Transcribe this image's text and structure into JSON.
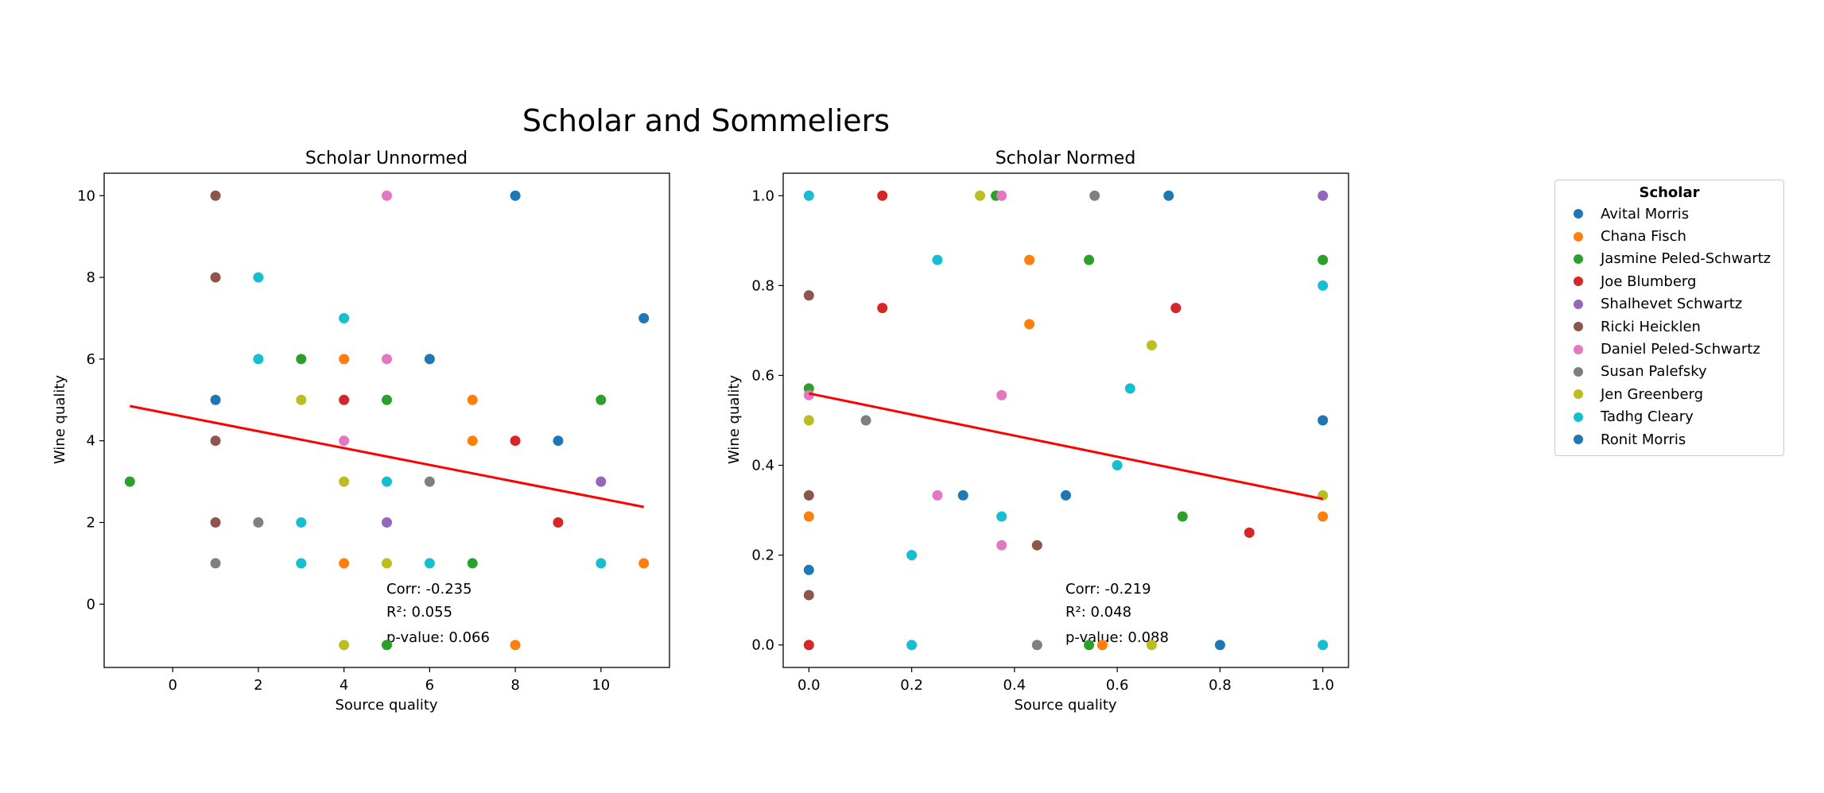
{
  "figure": {
    "title": "Scholar and Sommeliers"
  },
  "legend": {
    "title": "Scholar",
    "entries": [
      {
        "name": "Avital Morris",
        "color": "#1f77b4"
      },
      {
        "name": "Chana Fisch",
        "color": "#ff7f0e"
      },
      {
        "name": "Jasmine Peled-Schwartz",
        "color": "#2ca02c"
      },
      {
        "name": "Joe Blumberg",
        "color": "#d62728"
      },
      {
        "name": "Shalhevet Schwartz",
        "color": "#9467bd"
      },
      {
        "name": "Ricki Heicklen",
        "color": "#8c564b"
      },
      {
        "name": "Daniel Peled-Schwartz",
        "color": "#e377c2"
      },
      {
        "name": "Susan Palefsky",
        "color": "#7f7f7f"
      },
      {
        "name": "Jen Greenberg",
        "color": "#bcbd22"
      },
      {
        "name": "Tadhg Cleary",
        "color": "#17becf"
      },
      {
        "name": "Ronit Morris",
        "color": "#1f77b4"
      }
    ]
  },
  "chart_data": [
    {
      "type": "scatter",
      "title": "Scholar Unnormed",
      "xlabel": "Source quality",
      "ylabel": "Wine quality",
      "xlim": [
        -1.6,
        11.6
      ],
      "ylim": [
        -1.55,
        10.55
      ],
      "xticks": [
        0,
        2,
        4,
        6,
        8,
        10
      ],
      "yticks": [
        0,
        2,
        4,
        6,
        8,
        10
      ],
      "grid": false,
      "regression": {
        "x": [
          -1,
          11
        ],
        "y": [
          4.85,
          2.38
        ],
        "color": "#ff0000"
      },
      "stats": [
        "Corr: -0.235",
        "R²: 0.055",
        "p-value: 0.066"
      ],
      "points": [
        {
          "x": 1,
          "y": 10,
          "color": "#8c564b"
        },
        {
          "x": 5,
          "y": 10,
          "color": "#e377c2"
        },
        {
          "x": 8,
          "y": 10,
          "color": "#1f77b4"
        },
        {
          "x": 1,
          "y": 8,
          "color": "#8c564b"
        },
        {
          "x": 2,
          "y": 8,
          "color": "#17becf"
        },
        {
          "x": 4,
          "y": 7,
          "color": "#17becf"
        },
        {
          "x": 11,
          "y": 7,
          "color": "#1f77b4"
        },
        {
          "x": 2,
          "y": 6,
          "color": "#17becf"
        },
        {
          "x": 3,
          "y": 6,
          "color": "#2ca02c"
        },
        {
          "x": 4,
          "y": 6,
          "color": "#ff7f0e"
        },
        {
          "x": 5,
          "y": 6,
          "color": "#e377c2"
        },
        {
          "x": 6,
          "y": 6,
          "color": "#1f77b4"
        },
        {
          "x": 1,
          "y": 5,
          "color": "#1f77b4"
        },
        {
          "x": 3,
          "y": 5,
          "color": "#bcbd22"
        },
        {
          "x": 4,
          "y": 5,
          "color": "#d62728"
        },
        {
          "x": 5,
          "y": 5,
          "color": "#2ca02c"
        },
        {
          "x": 7,
          "y": 5,
          "color": "#ff7f0e"
        },
        {
          "x": 10,
          "y": 5,
          "color": "#2ca02c"
        },
        {
          "x": 1,
          "y": 4,
          "color": "#8c564b"
        },
        {
          "x": 4,
          "y": 4,
          "color": "#e377c2"
        },
        {
          "x": 7,
          "y": 4,
          "color": "#ff7f0e"
        },
        {
          "x": 8,
          "y": 4,
          "color": "#d62728"
        },
        {
          "x": 9,
          "y": 4,
          "color": "#1f77b4"
        },
        {
          "x": -1,
          "y": 3,
          "color": "#2ca02c"
        },
        {
          "x": 4,
          "y": 3,
          "color": "#bcbd22"
        },
        {
          "x": 5,
          "y": 3,
          "color": "#17becf"
        },
        {
          "x": 6,
          "y": 3,
          "color": "#7f7f7f"
        },
        {
          "x": 10,
          "y": 3,
          "color": "#9467bd"
        },
        {
          "x": 1,
          "y": 2,
          "color": "#8c564b"
        },
        {
          "x": 2,
          "y": 2,
          "color": "#7f7f7f"
        },
        {
          "x": 3,
          "y": 2,
          "color": "#17becf"
        },
        {
          "x": 5,
          "y": 2,
          "color": "#9467bd"
        },
        {
          "x": 9,
          "y": 2,
          "color": "#d62728"
        },
        {
          "x": 1,
          "y": 1,
          "color": "#7f7f7f"
        },
        {
          "x": 3,
          "y": 1,
          "color": "#17becf"
        },
        {
          "x": 4,
          "y": 1,
          "color": "#ff7f0e"
        },
        {
          "x": 5,
          "y": 1,
          "color": "#bcbd22"
        },
        {
          "x": 6,
          "y": 1,
          "color": "#17becf"
        },
        {
          "x": 7,
          "y": 1,
          "color": "#2ca02c"
        },
        {
          "x": 10,
          "y": 1,
          "color": "#17becf"
        },
        {
          "x": 11,
          "y": 1,
          "color": "#ff7f0e"
        },
        {
          "x": 4,
          "y": -1,
          "color": "#bcbd22"
        },
        {
          "x": 5,
          "y": -1,
          "color": "#2ca02c"
        },
        {
          "x": 8,
          "y": -1,
          "color": "#ff7f0e"
        }
      ]
    },
    {
      "type": "scatter",
      "title": "Scholar Normed",
      "xlabel": "Source quality",
      "ylabel": "Wine quality",
      "xlim": [
        -0.05,
        1.05
      ],
      "ylim": [
        -0.05,
        1.05
      ],
      "xticks": [
        "0.0",
        "0.2",
        "0.4",
        "0.6",
        "0.8",
        "1.0"
      ],
      "yticks": [
        "0.0",
        "0.2",
        "0.4",
        "0.6",
        "0.8",
        "1.0"
      ],
      "grid": false,
      "regression": {
        "x": [
          0,
          1
        ],
        "y": [
          0.56,
          0.325
        ],
        "color": "#ff0000"
      },
      "stats": [
        "Corr: -0.219",
        "R²: 0.048",
        "p-value: 0.088"
      ],
      "points": [
        {
          "x": 0.0,
          "y": 1.0,
          "color": "#17becf"
        },
        {
          "x": 0.143,
          "y": 1.0,
          "color": "#d62728"
        },
        {
          "x": 0.333,
          "y": 1.0,
          "color": "#bcbd22"
        },
        {
          "x": 0.364,
          "y": 1.0,
          "color": "#2ca02c"
        },
        {
          "x": 0.375,
          "y": 1.0,
          "color": "#e377c2"
        },
        {
          "x": 0.556,
          "y": 1.0,
          "color": "#7f7f7f"
        },
        {
          "x": 0.7,
          "y": 1.0,
          "color": "#1f77b4"
        },
        {
          "x": 1.0,
          "y": 1.0,
          "color": "#9467bd"
        },
        {
          "x": 0.25,
          "y": 0.857,
          "color": "#17becf"
        },
        {
          "x": 0.429,
          "y": 0.857,
          "color": "#ff7f0e"
        },
        {
          "x": 0.545,
          "y": 0.857,
          "color": "#2ca02c"
        },
        {
          "x": 1.0,
          "y": 0.857,
          "color": "#2ca02c"
        },
        {
          "x": 1.0,
          "y": 0.8,
          "color": "#17becf"
        },
        {
          "x": 0.0,
          "y": 0.778,
          "color": "#8c564b"
        },
        {
          "x": 0.143,
          "y": 0.75,
          "color": "#d62728"
        },
        {
          "x": 0.714,
          "y": 0.75,
          "color": "#d62728"
        },
        {
          "x": 0.429,
          "y": 0.714,
          "color": "#ff7f0e"
        },
        {
          "x": 0.667,
          "y": 0.667,
          "color": "#bcbd22"
        },
        {
          "x": 0.0,
          "y": 0.571,
          "color": "#2ca02c"
        },
        {
          "x": 0.625,
          "y": 0.571,
          "color": "#17becf"
        },
        {
          "x": 0.0,
          "y": 0.556,
          "color": "#e377c2"
        },
        {
          "x": 0.375,
          "y": 0.556,
          "color": "#e377c2"
        },
        {
          "x": 0.0,
          "y": 0.5,
          "color": "#bcbd22"
        },
        {
          "x": 0.111,
          "y": 0.5,
          "color": "#7f7f7f"
        },
        {
          "x": 1.0,
          "y": 0.5,
          "color": "#1f77b4"
        },
        {
          "x": 0.6,
          "y": 0.4,
          "color": "#17becf"
        },
        {
          "x": 0.0,
          "y": 0.333,
          "color": "#8c564b"
        },
        {
          "x": 0.25,
          "y": 0.333,
          "color": "#e377c2"
        },
        {
          "x": 0.3,
          "y": 0.333,
          "color": "#1f77b4"
        },
        {
          "x": 0.5,
          "y": 0.333,
          "color": "#1f77b4"
        },
        {
          "x": 1.0,
          "y": 0.333,
          "color": "#bcbd22"
        },
        {
          "x": 0.0,
          "y": 0.286,
          "color": "#ff7f0e"
        },
        {
          "x": 0.375,
          "y": 0.286,
          "color": "#17becf"
        },
        {
          "x": 0.727,
          "y": 0.286,
          "color": "#2ca02c"
        },
        {
          "x": 1.0,
          "y": 0.286,
          "color": "#ff7f0e"
        },
        {
          "x": 0.857,
          "y": 0.25,
          "color": "#d62728"
        },
        {
          "x": 0.375,
          "y": 0.222,
          "color": "#e377c2"
        },
        {
          "x": 0.444,
          "y": 0.222,
          "color": "#8c564b"
        },
        {
          "x": 0.2,
          "y": 0.2,
          "color": "#17becf"
        },
        {
          "x": 0.0,
          "y": 0.167,
          "color": "#1f77b4"
        },
        {
          "x": 0.0,
          "y": 0.111,
          "color": "#8c564b"
        },
        {
          "x": 0.0,
          "y": 0.0,
          "color": "#d62728"
        },
        {
          "x": 0.2,
          "y": 0.0,
          "color": "#17becf"
        },
        {
          "x": 0.444,
          "y": 0.0,
          "color": "#7f7f7f"
        },
        {
          "x": 0.545,
          "y": 0.0,
          "color": "#2ca02c"
        },
        {
          "x": 0.571,
          "y": 0.0,
          "color": "#ff7f0e"
        },
        {
          "x": 0.667,
          "y": 0.0,
          "color": "#bcbd22"
        },
        {
          "x": 0.8,
          "y": 0.0,
          "color": "#1f77b4"
        },
        {
          "x": 1.0,
          "y": 0.0,
          "color": "#17becf"
        }
      ]
    }
  ]
}
